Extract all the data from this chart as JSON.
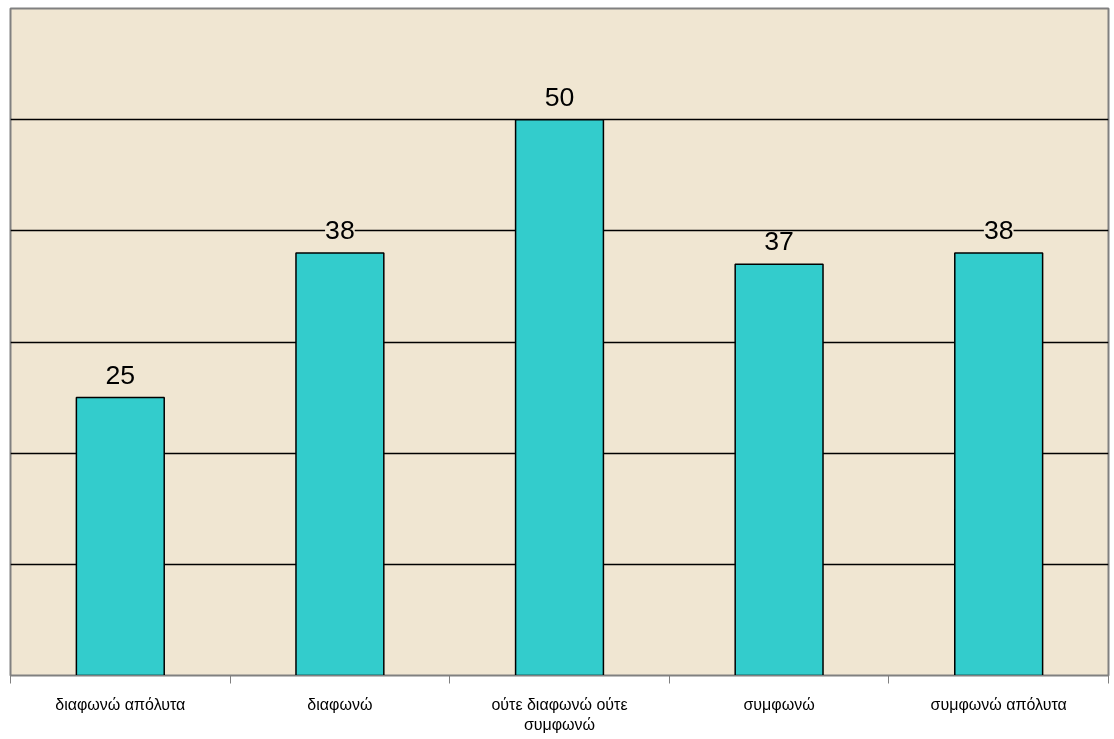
{
  "chart_data": {
    "type": "bar",
    "categories": [
      "διαφωνώ απόλυτα",
      "διαφωνώ",
      "ούτε διαφωνώ ούτε συμφωνώ",
      "συμφωνώ",
      "συμφωνώ απόλυτα"
    ],
    "values": [
      25,
      38,
      50,
      37,
      38
    ],
    "color": "#33cccc",
    "ylim": [
      0,
      60
    ],
    "yticks": [
      {
        "value": 10,
        "label": null
      },
      {
        "value": 20,
        "label": null
      },
      {
        "value": 30,
        "label": null
      },
      {
        "value": 40,
        "label": null
      },
      {
        "value": 50,
        "label": null
      }
    ],
    "grid": "y",
    "tick_labels": "x",
    "data_labels": true
  }
}
